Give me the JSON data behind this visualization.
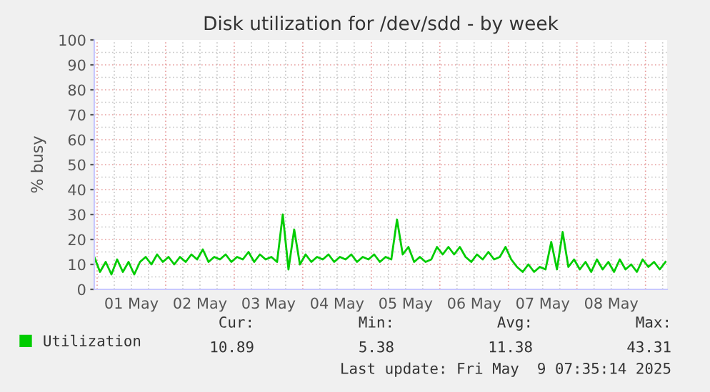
{
  "chart_data": {
    "type": "line",
    "title": "Disk utilization for /dev/sdd - by week",
    "ylabel": "% busy",
    "x": [
      "2025-04-30T23:00",
      "2025-05-01T01:00",
      "2025-05-01T03:00",
      "2025-05-01T05:00",
      "2025-05-01T07:00",
      "2025-05-01T09:00",
      "2025-05-01T11:00",
      "2025-05-01T13:00",
      "2025-05-01T15:00",
      "2025-05-01T17:00",
      "2025-05-01T19:00",
      "2025-05-01T21:00",
      "2025-05-01T23:00",
      "2025-05-02T01:00",
      "2025-05-02T03:00",
      "2025-05-02T05:00",
      "2025-05-02T07:00",
      "2025-05-02T09:00",
      "2025-05-02T11:00",
      "2025-05-02T13:00",
      "2025-05-02T15:00",
      "2025-05-02T17:00",
      "2025-05-02T19:00",
      "2025-05-02T21:00",
      "2025-05-02T23:00",
      "2025-05-03T01:00",
      "2025-05-03T03:00",
      "2025-05-03T05:00",
      "2025-05-03T07:00",
      "2025-05-03T09:00",
      "2025-05-03T11:00",
      "2025-05-03T13:00",
      "2025-05-03T15:00",
      "2025-05-03T17:00",
      "2025-05-03T19:00",
      "2025-05-03T21:00",
      "2025-05-03T23:00",
      "2025-05-04T01:00",
      "2025-05-04T03:00",
      "2025-05-04T05:00",
      "2025-05-04T07:00",
      "2025-05-04T09:00",
      "2025-05-04T11:00",
      "2025-05-04T13:00",
      "2025-05-04T15:00",
      "2025-05-04T17:00",
      "2025-05-04T19:00",
      "2025-05-04T21:00",
      "2025-05-04T23:00",
      "2025-05-05T01:00",
      "2025-05-05T03:00",
      "2025-05-05T05:00",
      "2025-05-05T07:00",
      "2025-05-05T09:00",
      "2025-05-05T11:00",
      "2025-05-05T13:00",
      "2025-05-05T15:00",
      "2025-05-05T17:00",
      "2025-05-05T19:00",
      "2025-05-05T21:00",
      "2025-05-05T23:00",
      "2025-05-06T01:00",
      "2025-05-06T03:00",
      "2025-05-06T05:00",
      "2025-05-06T07:00",
      "2025-05-06T09:00",
      "2025-05-06T11:00",
      "2025-05-06T13:00",
      "2025-05-06T15:00",
      "2025-05-06T17:00",
      "2025-05-06T19:00",
      "2025-05-06T21:00",
      "2025-05-06T23:00",
      "2025-05-07T01:00",
      "2025-05-07T03:00",
      "2025-05-07T05:00",
      "2025-05-07T07:00",
      "2025-05-07T09:00",
      "2025-05-07T11:00",
      "2025-05-07T13:00",
      "2025-05-07T15:00",
      "2025-05-07T17:00",
      "2025-05-07T19:00",
      "2025-05-07T21:00",
      "2025-05-07T23:00",
      "2025-05-08T01:00",
      "2025-05-08T03:00",
      "2025-05-08T05:00",
      "2025-05-08T07:00",
      "2025-05-08T09:00",
      "2025-05-08T11:00",
      "2025-05-08T13:00",
      "2025-05-08T15:00",
      "2025-05-08T17:00",
      "2025-05-08T19:00",
      "2025-05-08T21:00",
      "2025-05-08T23:00",
      "2025-05-09T01:00",
      "2025-05-09T03:00",
      "2025-05-09T05:00",
      "2025-05-09T07:00"
    ],
    "series": [
      {
        "name": "Utilization",
        "color": "#00cc00",
        "values": [
          13,
          7,
          11,
          6,
          12,
          7,
          11,
          6,
          11,
          13,
          10,
          14,
          11,
          13,
          10,
          13,
          11,
          14,
          12,
          16,
          11,
          13,
          12,
          14,
          11,
          13,
          12,
          15,
          11,
          14,
          12,
          13,
          11,
          30,
          8,
          24,
          10,
          14,
          11,
          13,
          12,
          14,
          11,
          13,
          12,
          14,
          11,
          13,
          12,
          14,
          11,
          13,
          12,
          28,
          14,
          17,
          11,
          13,
          11,
          12,
          17,
          14,
          17,
          14,
          17,
          13,
          11,
          14,
          12,
          15,
          12,
          13,
          17,
          12,
          9,
          7,
          10,
          7,
          9,
          8,
          19,
          8,
          23,
          9,
          12,
          8,
          11,
          7,
          12,
          8,
          11,
          7,
          12,
          8,
          10,
          7,
          12,
          9,
          11,
          8,
          11
        ]
      }
    ],
    "xlim": [
      "2025-04-30T23:00",
      "2025-05-09T07:35"
    ],
    "xticks": [
      {
        "value": "2025-05-01T12:00",
        "label": "01 May"
      },
      {
        "value": "2025-05-02T12:00",
        "label": "02 May"
      },
      {
        "value": "2025-05-03T12:00",
        "label": "03 May"
      },
      {
        "value": "2025-05-04T12:00",
        "label": "04 May"
      },
      {
        "value": "2025-05-05T12:00",
        "label": "05 May"
      },
      {
        "value": "2025-05-06T12:00",
        "label": "06 May"
      },
      {
        "value": "2025-05-07T12:00",
        "label": "07 May"
      },
      {
        "value": "2025-05-08T12:00",
        "label": "08 May"
      }
    ],
    "ylim": [
      0,
      100
    ],
    "yticks": [
      0,
      10,
      20,
      30,
      40,
      50,
      60,
      70,
      80,
      90,
      100
    ],
    "grid": true,
    "legend": "bottom",
    "marker": "none",
    "line_style": "solid",
    "annotations": [
      "Cur:",
      "10.89",
      "Min:",
      "5.38",
      "Avg:",
      "11.38",
      "Max:",
      "43.31",
      "Last update: Fri May  9 07:35:14 2025"
    ]
  }
}
